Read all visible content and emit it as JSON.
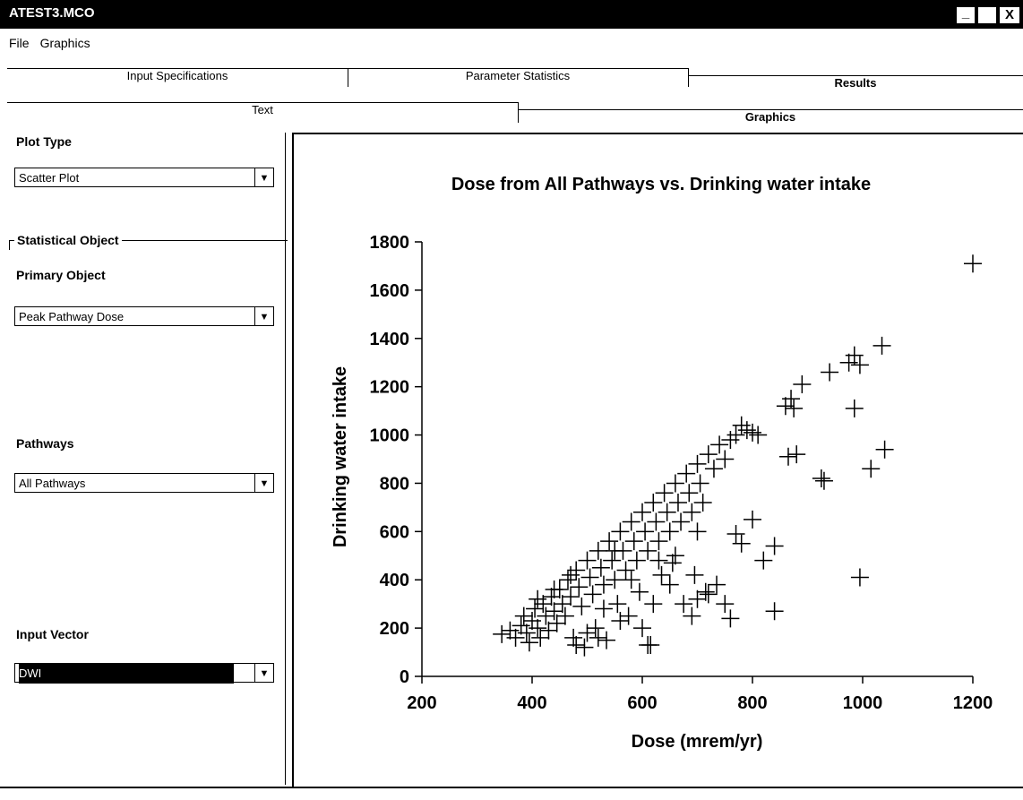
{
  "window": {
    "title": "ATEST3.MCO"
  },
  "menu": [
    "File",
    "Graphics"
  ],
  "tabs_top": [
    "Input Specifications",
    "Parameter Statistics",
    "Results"
  ],
  "tabs_sub": [
    "Text",
    "Graphics"
  ],
  "panel": {
    "plot_type_label": "Plot Type",
    "plot_type": "Scatter Plot",
    "group": "Statistical Object",
    "primary_label": "Primary Object",
    "primary": "Peak Pathway Dose",
    "pathways_label": "Pathways",
    "pathways": "All Pathways",
    "vector_label": "Input Vector",
    "vector": "DWI"
  },
  "chart_data": {
    "type": "scatter",
    "title": "Dose from All Pathways vs. Drinking water intake",
    "xlabel": "Dose (mrem/yr)",
    "ylabel": "Drinking water intake",
    "color": "#000000",
    "xlim": [
      200,
      1200
    ],
    "ylim": [
      0,
      1800
    ],
    "xticks": [
      200,
      400,
      600,
      800,
      1000,
      1200
    ],
    "yticks": [
      0,
      200,
      400,
      600,
      800,
      1000,
      1200,
      1400,
      1600,
      1800
    ],
    "x": [
      345,
      360,
      370,
      380,
      385,
      390,
      395,
      400,
      405,
      410,
      415,
      420,
      425,
      430,
      435,
      440,
      445,
      450,
      455,
      460,
      465,
      470,
      475,
      480,
      485,
      490,
      495,
      500,
      505,
      510,
      515,
      520,
      525,
      530,
      535,
      540,
      545,
      550,
      555,
      560,
      565,
      570,
      575,
      580,
      585,
      590,
      595,
      600,
      605,
      610,
      615,
      620,
      625,
      630,
      635,
      640,
      645,
      650,
      655,
      660,
      665,
      670,
      675,
      680,
      685,
      690,
      695,
      700,
      705,
      710,
      715,
      720,
      730,
      740,
      750,
      760,
      770,
      780,
      790,
      800,
      810,
      860,
      870,
      875,
      890,
      940,
      975,
      985,
      995,
      1035,
      1200,
      985,
      1040,
      1015,
      930,
      925,
      995,
      840,
      760,
      820,
      840,
      800,
      865,
      880,
      770,
      780,
      735,
      720,
      690,
      700,
      750,
      600,
      610,
      500,
      520,
      480,
      470,
      550,
      580,
      630,
      660,
      700,
      620,
      560,
      440,
      410,
      530,
      650
    ],
    "values": [
      175,
      190,
      160,
      210,
      250,
      180,
      140,
      230,
      280,
      200,
      160,
      300,
      250,
      190,
      330,
      270,
      220,
      360,
      300,
      250,
      400,
      330,
      160,
      440,
      370,
      290,
      120,
      480,
      410,
      340,
      200,
      520,
      450,
      380,
      150,
      560,
      480,
      400,
      300,
      600,
      520,
      440,
      250,
      640,
      560,
      480,
      350,
      680,
      600,
      520,
      130,
      720,
      640,
      560,
      420,
      760,
      680,
      600,
      470,
      800,
      720,
      640,
      300,
      840,
      760,
      680,
      420,
      880,
      800,
      720,
      350,
      920,
      860,
      960,
      900,
      980,
      1000,
      1040,
      1020,
      1010,
      1000,
      1120,
      1150,
      1110,
      1210,
      1260,
      1300,
      1330,
      1290,
      1370,
      1710,
      1110,
      940,
      860,
      810,
      820,
      410,
      270,
      240,
      480,
      540,
      650,
      910,
      920,
      590,
      550,
      380,
      340,
      250,
      320,
      300,
      200,
      130,
      180,
      160,
      130,
      420,
      520,
      400,
      480,
      500,
      600,
      300,
      230,
      360,
      320,
      280,
      380
    ]
  }
}
